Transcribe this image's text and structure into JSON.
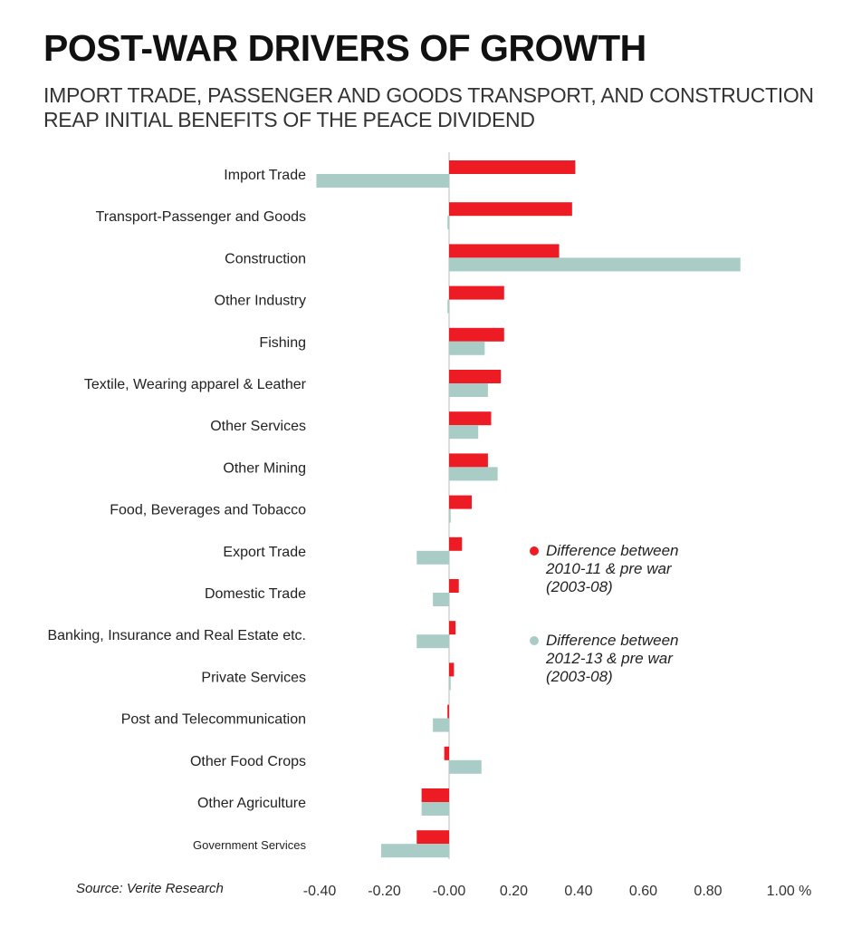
{
  "title": "POST-WAR DRIVERS OF GROWTH",
  "subtitle": "IMPORT TRADE, PASSENGER AND GOODS TRANSPORT, AND CONSTRUCTION REAP INITIAL BENEFITS OF THE PEACE DIVIDEND",
  "source": "Source: Verite Research",
  "chart_data": {
    "type": "bar",
    "orientation": "horizontal",
    "categories": [
      "Import Trade",
      "Transport-Passenger and Goods",
      "Construction",
      "Other Industry",
      "Fishing",
      "Textile, Wearing apparel & Leather",
      "Other Services",
      "Other Mining",
      "Food, Beverages and Tobacco",
      "Export Trade",
      "Domestic Trade",
      "Banking, Insurance and Real Estate etc.",
      "Private Services",
      "Post and Telecommunication",
      "Other Food Crops",
      "Other Agriculture",
      "Government Services"
    ],
    "series": [
      {
        "name": "Difference between 2010-11 & pre war (2003-08)",
        "color": "#ed1c24",
        "values": [
          0.39,
          0.38,
          0.34,
          0.17,
          0.17,
          0.16,
          0.13,
          0.12,
          0.07,
          0.04,
          0.03,
          0.02,
          0.015,
          -0.005,
          -0.015,
          -0.085,
          -0.1
        ]
      },
      {
        "name": "Difference between 2012-13 & pre war (2003-08)",
        "color": "#a9cdc6",
        "values": [
          -0.41,
          -0.005,
          0.9,
          -0.005,
          0.11,
          0.12,
          0.09,
          0.15,
          0.005,
          -0.1,
          -0.05,
          -0.1,
          0.005,
          -0.05,
          0.1,
          -0.085,
          -0.21
        ]
      }
    ],
    "xlim": [
      -0.4,
      1.0
    ],
    "xticks": [
      "-0.40",
      "-0.20",
      "-0.00",
      "0.20",
      "0.40",
      "0.60",
      "0.80",
      "1.00 %"
    ],
    "grid": false,
    "legend_position": "right"
  }
}
